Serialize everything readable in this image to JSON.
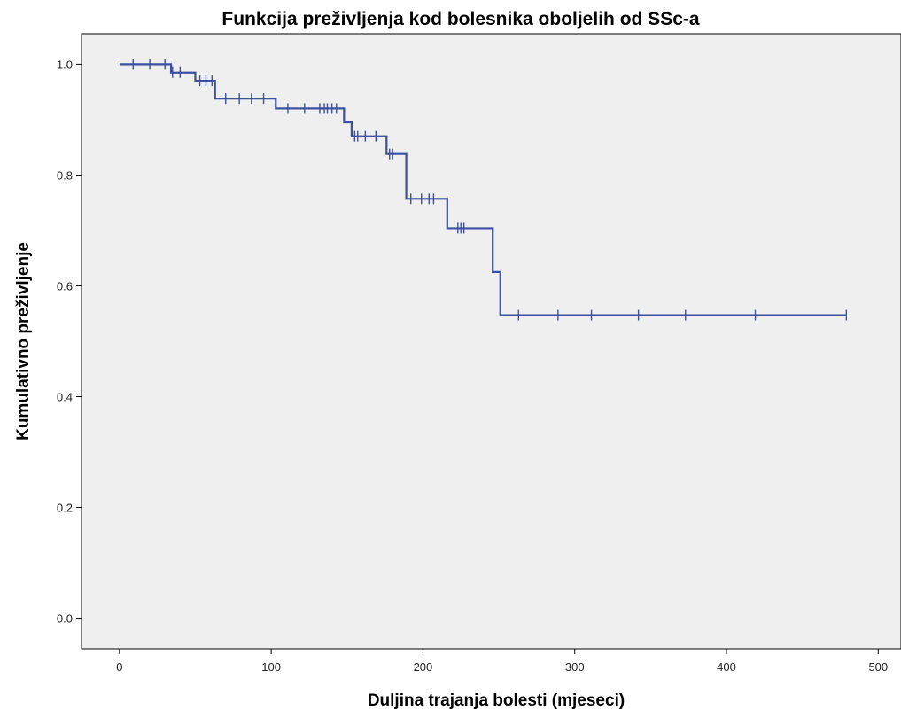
{
  "chart_data": {
    "type": "line",
    "title": "Funkcija preživljenja kod bolesnika oboljelih od SSc-a",
    "xlabel": "Duljina trajanja bolesti (mjeseci)",
    "ylabel": "Kumulativno preživljenje",
    "xlim": [
      -25,
      515
    ],
    "ylim": [
      -0.055,
      1.055
    ],
    "x_ticks": [
      0,
      100,
      200,
      300,
      400,
      500
    ],
    "x_tick_labels": [
      "0",
      "100",
      "200",
      "300",
      "400",
      "500"
    ],
    "y_ticks": [
      0.0,
      0.2,
      0.4,
      0.6,
      0.8,
      1.0
    ],
    "y_tick_labels": [
      "0.0",
      "0.2",
      "0.4",
      "0.6",
      "0.8",
      "1.0"
    ],
    "grid": false,
    "series": [
      {
        "line_color": "#3c50a0",
        "steps": [
          {
            "x": 0,
            "y": 1.0
          },
          {
            "x": 34,
            "y": 0.985
          },
          {
            "x": 50,
            "y": 0.97
          },
          {
            "x": 63,
            "y": 0.938
          },
          {
            "x": 103,
            "y": 0.92
          },
          {
            "x": 148,
            "y": 0.895
          },
          {
            "x": 153,
            "y": 0.87
          },
          {
            "x": 176,
            "y": 0.838
          },
          {
            "x": 189,
            "y": 0.757
          },
          {
            "x": 216,
            "y": 0.704
          },
          {
            "x": 246,
            "y": 0.625
          },
          {
            "x": 251,
            "y": 0.547
          }
        ],
        "end_x": 479,
        "censored": [
          {
            "x": 9,
            "y": 1.0
          },
          {
            "x": 20,
            "y": 1.0
          },
          {
            "x": 30,
            "y": 1.0
          },
          {
            "x": 35,
            "y": 0.985
          },
          {
            "x": 40,
            "y": 0.985
          },
          {
            "x": 53,
            "y": 0.97
          },
          {
            "x": 57,
            "y": 0.97
          },
          {
            "x": 61,
            "y": 0.97
          },
          {
            "x": 70,
            "y": 0.938
          },
          {
            "x": 79,
            "y": 0.938
          },
          {
            "x": 87,
            "y": 0.938
          },
          {
            "x": 95,
            "y": 0.938
          },
          {
            "x": 111,
            "y": 0.92
          },
          {
            "x": 122,
            "y": 0.92
          },
          {
            "x": 132,
            "y": 0.92
          },
          {
            "x": 135,
            "y": 0.92
          },
          {
            "x": 137,
            "y": 0.92
          },
          {
            "x": 140,
            "y": 0.92
          },
          {
            "x": 143,
            "y": 0.92
          },
          {
            "x": 155,
            "y": 0.87
          },
          {
            "x": 157,
            "y": 0.87
          },
          {
            "x": 162,
            "y": 0.87
          },
          {
            "x": 169,
            "y": 0.87
          },
          {
            "x": 178,
            "y": 0.838
          },
          {
            "x": 180,
            "y": 0.838
          },
          {
            "x": 192,
            "y": 0.757
          },
          {
            "x": 199,
            "y": 0.757
          },
          {
            "x": 204,
            "y": 0.757
          },
          {
            "x": 207,
            "y": 0.757
          },
          {
            "x": 223,
            "y": 0.704
          },
          {
            "x": 225,
            "y": 0.704
          },
          {
            "x": 227,
            "y": 0.704
          },
          {
            "x": 263,
            "y": 0.547
          },
          {
            "x": 289,
            "y": 0.547
          },
          {
            "x": 311,
            "y": 0.547
          },
          {
            "x": 342,
            "y": 0.547
          },
          {
            "x": 373,
            "y": 0.547
          },
          {
            "x": 419,
            "y": 0.547
          },
          {
            "x": 479,
            "y": 0.547
          }
        ]
      }
    ],
    "plot_background": "#efefef"
  }
}
